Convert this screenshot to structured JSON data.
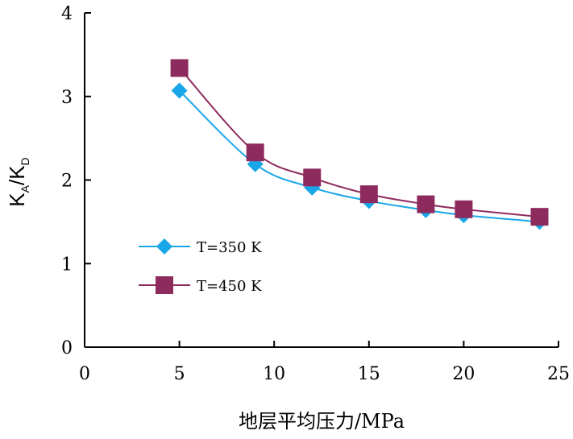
{
  "chart_data": {
    "type": "line",
    "title": "",
    "xlabel": "地层平均压力/MPa",
    "ylabel": {
      "main1": "K",
      "sub1": "A",
      "sep": "/K",
      "sub2": "D"
    },
    "xlim": [
      0,
      25
    ],
    "ylim": [
      0,
      4
    ],
    "xticks": [
      "0",
      "5",
      "10",
      "15",
      "20",
      "25"
    ],
    "yticks": [
      "0",
      "1",
      "2",
      "3",
      "4"
    ],
    "grid": false,
    "legend_position": "left-lower",
    "series": [
      {
        "name": "T=350 K",
        "color": "#19a6e8",
        "marker": "diamond",
        "x": [
          5,
          9,
          12,
          15,
          18,
          20,
          24
        ],
        "y": [
          3.07,
          2.19,
          1.91,
          1.75,
          1.64,
          1.58,
          1.5
        ]
      },
      {
        "name": "T=450 K",
        "color": "#8e2b5e",
        "marker": "square",
        "x": [
          5,
          9,
          12,
          15,
          18,
          20,
          24
        ],
        "y": [
          3.34,
          2.33,
          2.03,
          1.83,
          1.71,
          1.65,
          1.56
        ]
      }
    ]
  }
}
